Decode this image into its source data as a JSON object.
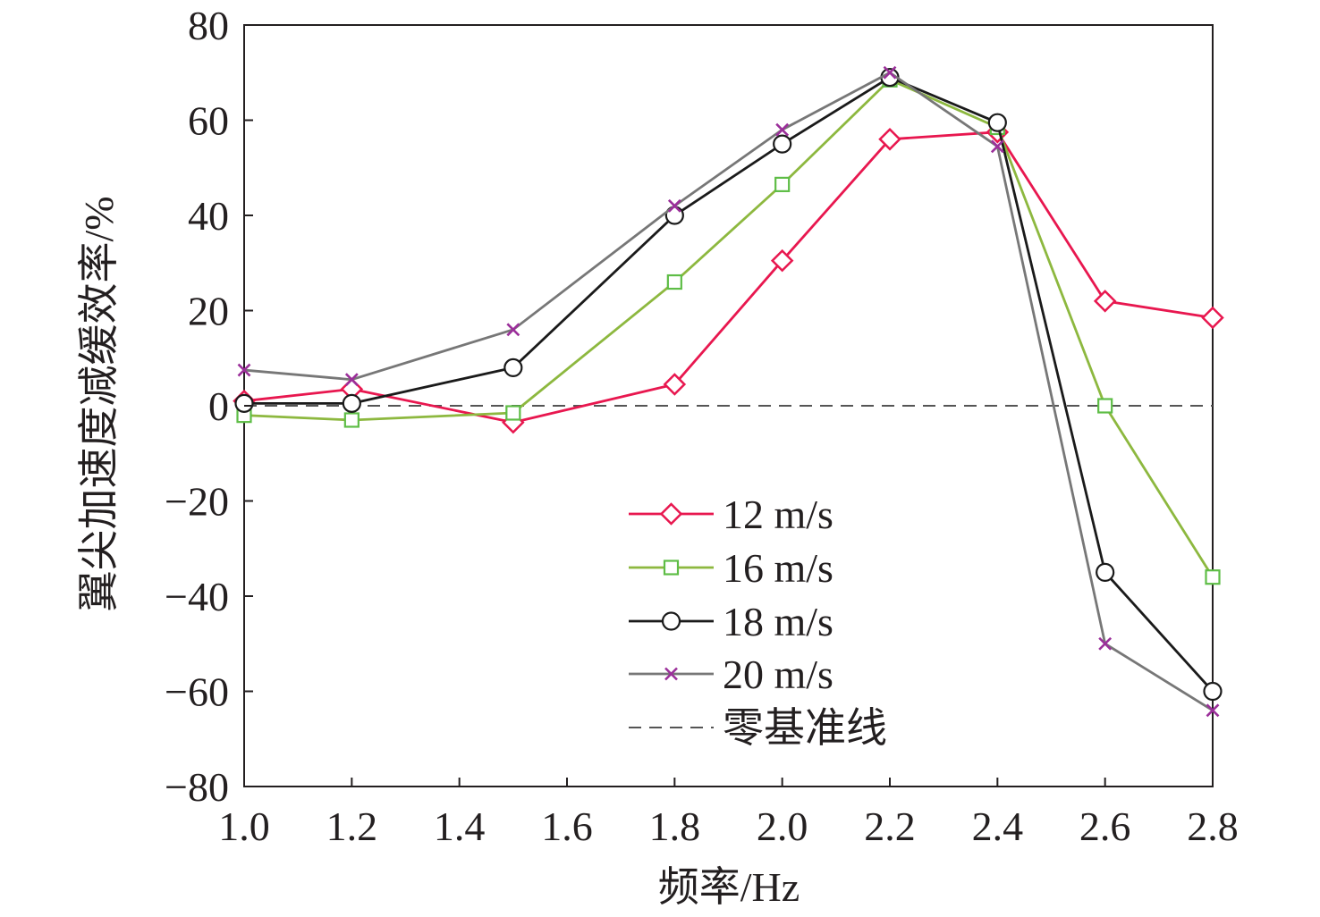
{
  "chart_data": {
    "type": "line",
    "xlabel": "频率/Hz",
    "ylabel": "翼尖加速度减缓效率/%",
    "xlim": [
      1.0,
      2.8
    ],
    "ylim": [
      -80,
      80
    ],
    "x_ticks": [
      "1.0",
      "1.2",
      "1.4",
      "1.6",
      "1.8",
      "2.0",
      "2.2",
      "2.4",
      "2.6",
      "2.8"
    ],
    "y_ticks": [
      "80",
      "60",
      "40",
      "20",
      "0",
      "−20",
      "−40",
      "−60",
      "−80"
    ],
    "grid": false,
    "legend_position": "center-right",
    "series": [
      {
        "name": "12 m/s",
        "color": "#e8174f",
        "marker": "diamond",
        "x": [
          1.0,
          1.2,
          1.5,
          1.8,
          2.0,
          2.2,
          2.4,
          2.6,
          2.8
        ],
        "values": [
          1,
          3.5,
          -3.5,
          4.5,
          30.5,
          56,
          57.5,
          22,
          18.5
        ]
      },
      {
        "name": "16 m/s",
        "color": "#8db83f",
        "marker_color": "#5ebd46",
        "marker": "square",
        "x": [
          1.0,
          1.2,
          1.5,
          1.8,
          2.0,
          2.2,
          2.4,
          2.6,
          2.8
        ],
        "values": [
          -2,
          -3,
          -1.5,
          26,
          46.5,
          68.5,
          58.5,
          0,
          -36
        ]
      },
      {
        "name": "18 m/s",
        "color": "#1a1a1a",
        "marker": "circle",
        "x": [
          1.0,
          1.2,
          1.5,
          1.8,
          2.0,
          2.2,
          2.4,
          2.6,
          2.8
        ],
        "values": [
          0.5,
          0.5,
          8,
          40,
          55,
          69,
          59.5,
          -35,
          -60
        ]
      },
      {
        "name": "20 m/s",
        "color": "#777777",
        "marker_color": "#9b2f9a",
        "marker": "x",
        "x": [
          1.0,
          1.2,
          1.5,
          1.8,
          2.0,
          2.2,
          2.4,
          2.6,
          2.8
        ],
        "values": [
          7.5,
          5.5,
          16,
          42,
          58,
          70,
          54.5,
          -50,
          -64
        ]
      }
    ],
    "reference_line": {
      "name": "零基准线",
      "y": 0,
      "style": "dashed",
      "color": "#555555"
    }
  }
}
